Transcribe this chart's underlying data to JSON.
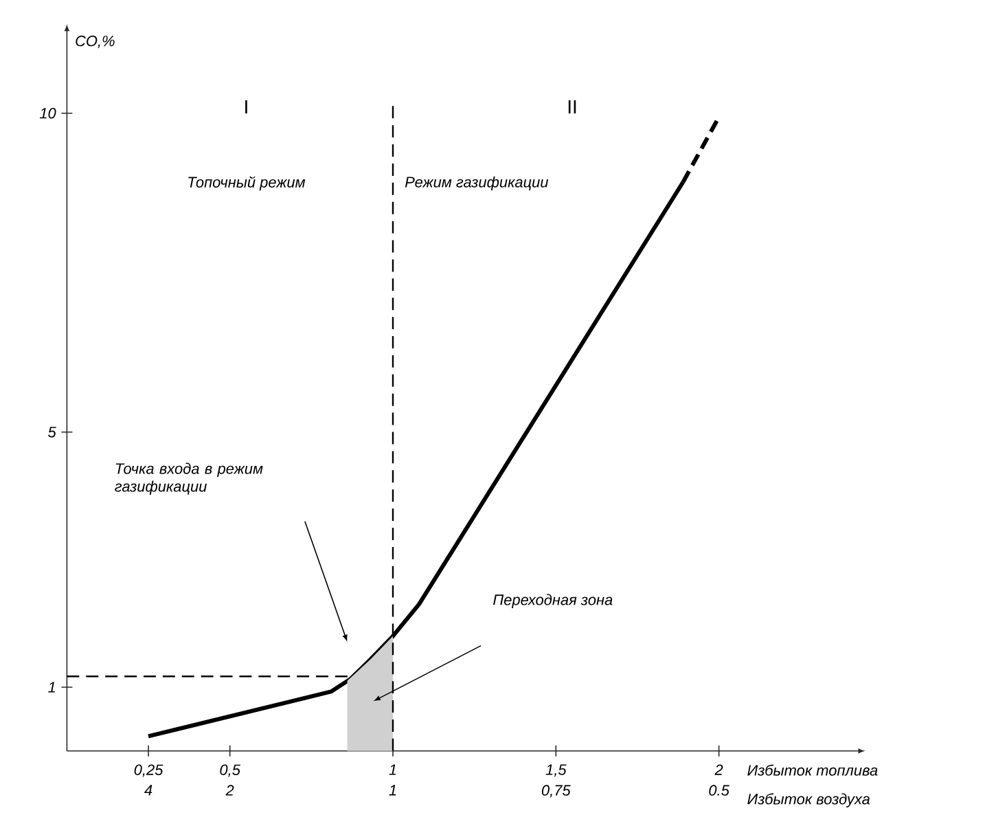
{
  "chart_data": {
    "type": "line",
    "xlabel": "Избыток топлива",
    "ylabel": "CO,%",
    "xlim": [
      0,
      2.43
    ],
    "ylim": [
      0,
      11.3
    ],
    "xticks": [
      {
        "value": 0.25,
        "label": "0,25"
      },
      {
        "value": 0.5,
        "label": "0,5"
      },
      1,
      {
        "value": 1.5,
        "label": "1,5"
      },
      2
    ],
    "yticks": [
      1,
      5,
      10
    ],
    "series": [
      {
        "color": "#000000",
        "line_style": "solid",
        "x": [
          0.25,
          0.81,
          0.87,
          0.93,
          1.0,
          1.08,
          1.89
        ],
        "values": [
          0.23,
          0.93,
          1.13,
          1.43,
          1.8,
          2.3,
          8.92
        ]
      },
      {
        "color": "#000000",
        "line_style": "dashed",
        "x": [
          1.89,
          2.0
        ],
        "values": [
          8.92,
          9.94
        ]
      },
      {
        "color": "#000000",
        "line_style": "dashed",
        "x": [
          0,
          0.87
        ],
        "values": [
          1.17,
          1.17
        ]
      },
      {
        "type": "area",
        "color": "#d0d0d0",
        "x": [
          0.86,
          0.93,
          1.0
        ],
        "values": [
          1.1,
          1.43,
          1.8
        ]
      }
    ],
    "ref_lines": [
      {
        "axis": "x",
        "value": 1,
        "line_style": "dashed",
        "color": "#000000"
      }
    ],
    "annotations": [
      "I",
      "II",
      "Топочный режим",
      "Режим газификации",
      "Точка входа в режим газификации",
      "Переходная зона",
      "4",
      "2",
      "1",
      "0,75",
      "0.5",
      "Избыток воздуха"
    ],
    "grid": false
  }
}
